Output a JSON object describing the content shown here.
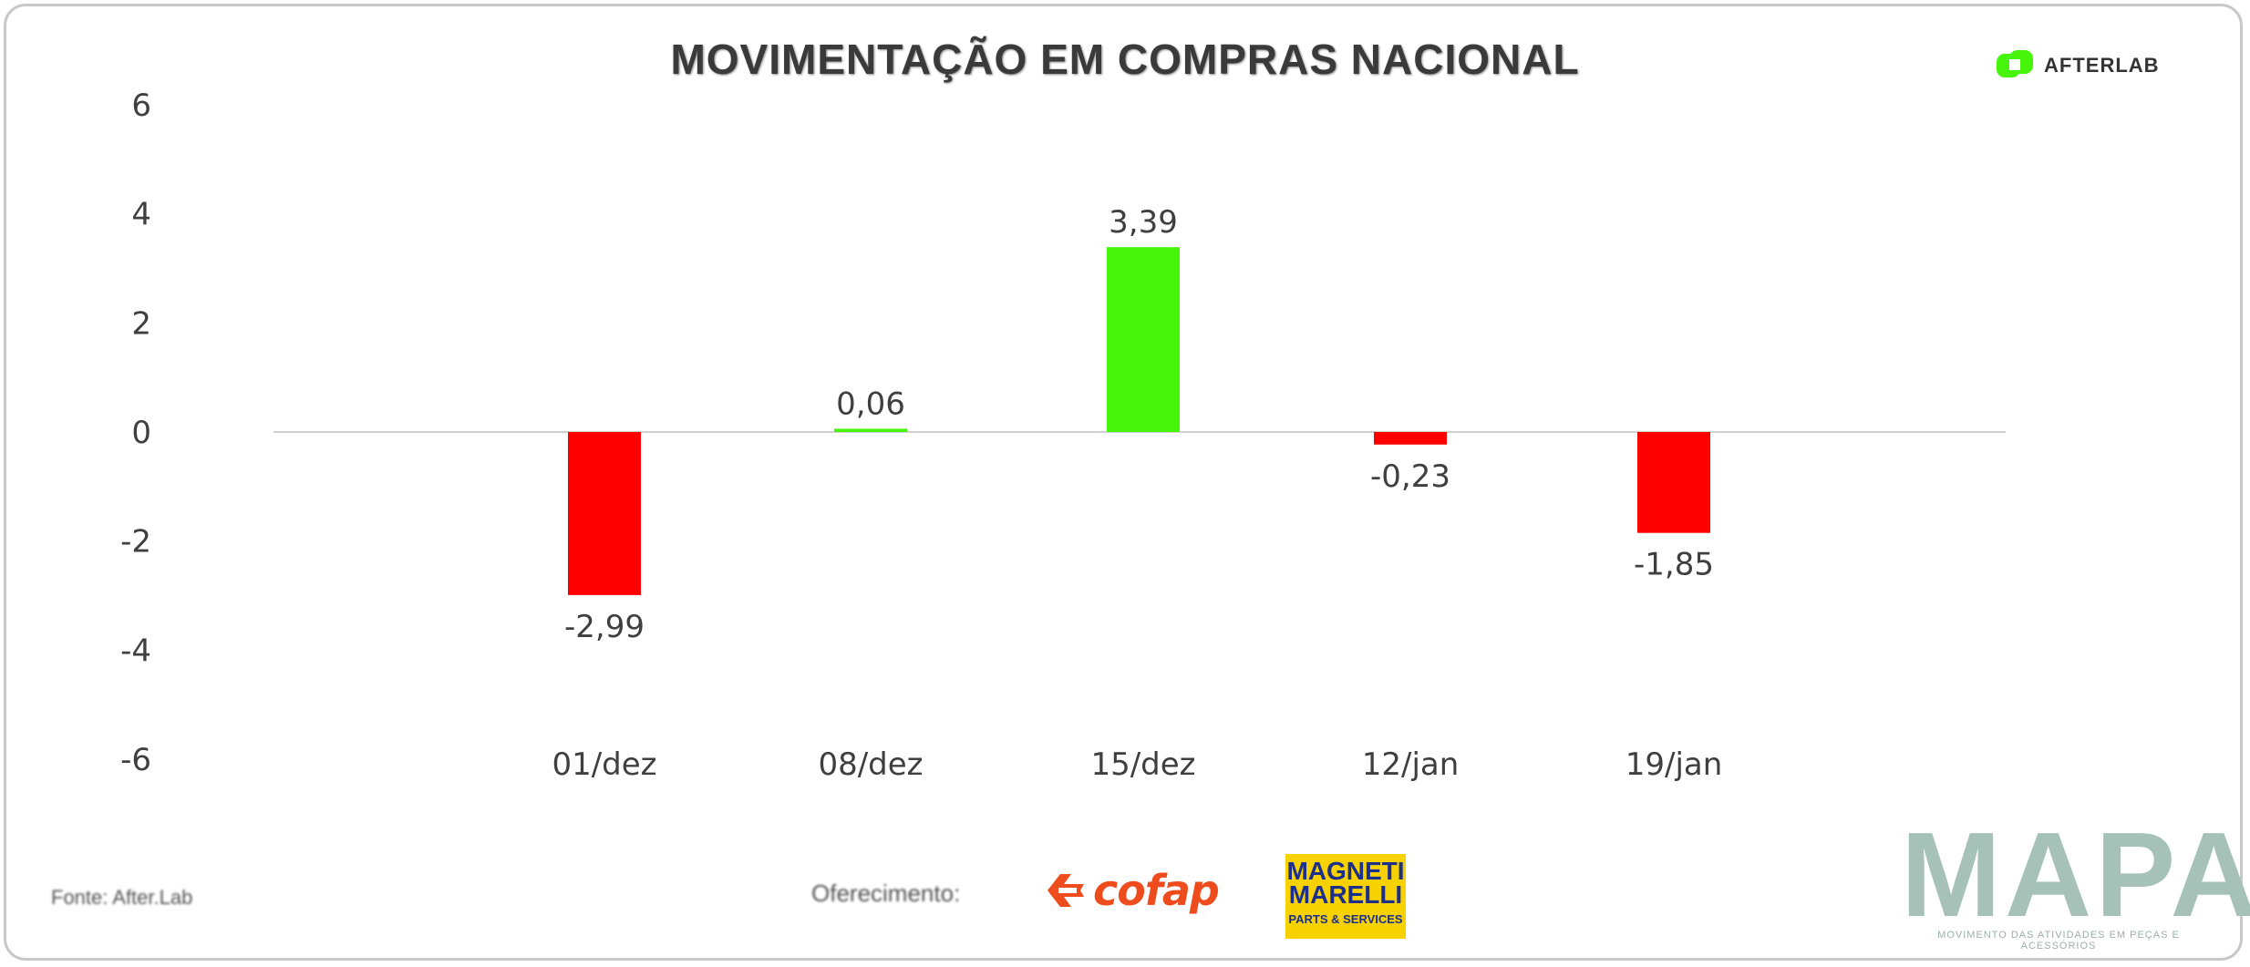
{
  "chart_data": {
    "type": "bar",
    "title": "MOVIMENTAÇÃO EM COMPRAS NACIONAL",
    "categories": [
      "01/dez",
      "08/dez",
      "15/dez",
      "12/jan",
      "19/jan"
    ],
    "values": [
      -2.99,
      0.06,
      3.39,
      -0.23,
      -1.85
    ],
    "value_labels": [
      "-2,99",
      "0,06",
      "3,39",
      "-0,23",
      "-1,85"
    ],
    "yticks": [
      "6",
      "4",
      "2",
      "0",
      "-2",
      "-4",
      "-6"
    ],
    "ylim": [
      -6,
      6
    ],
    "positive_color": "#46f50a",
    "negative_color": "#ff0000",
    "grid": false
  },
  "header": {
    "title": "MOVIMENTAÇÃO EM COMPRAS NACIONAL",
    "brand_name": "AFTERLAB",
    "brand_icon": "afterlab-logo-icon",
    "brand_color": "#46f50a"
  },
  "footer": {
    "source": "Fonte: After.Lab",
    "offer": "Oferecimento:",
    "sponsor1": "cofap",
    "sponsor1_color": "#ee4c1c",
    "sponsor2_line1": "MAGNETI",
    "sponsor2_line2": "MARELLI",
    "sponsor2_tagline": "PARTS & SERVICES",
    "mapa": "MAPA",
    "mapa_tagline": "MOVIMENTO DAS ATIVIDADES EM PEÇAS E ACESSÓRIOS"
  }
}
